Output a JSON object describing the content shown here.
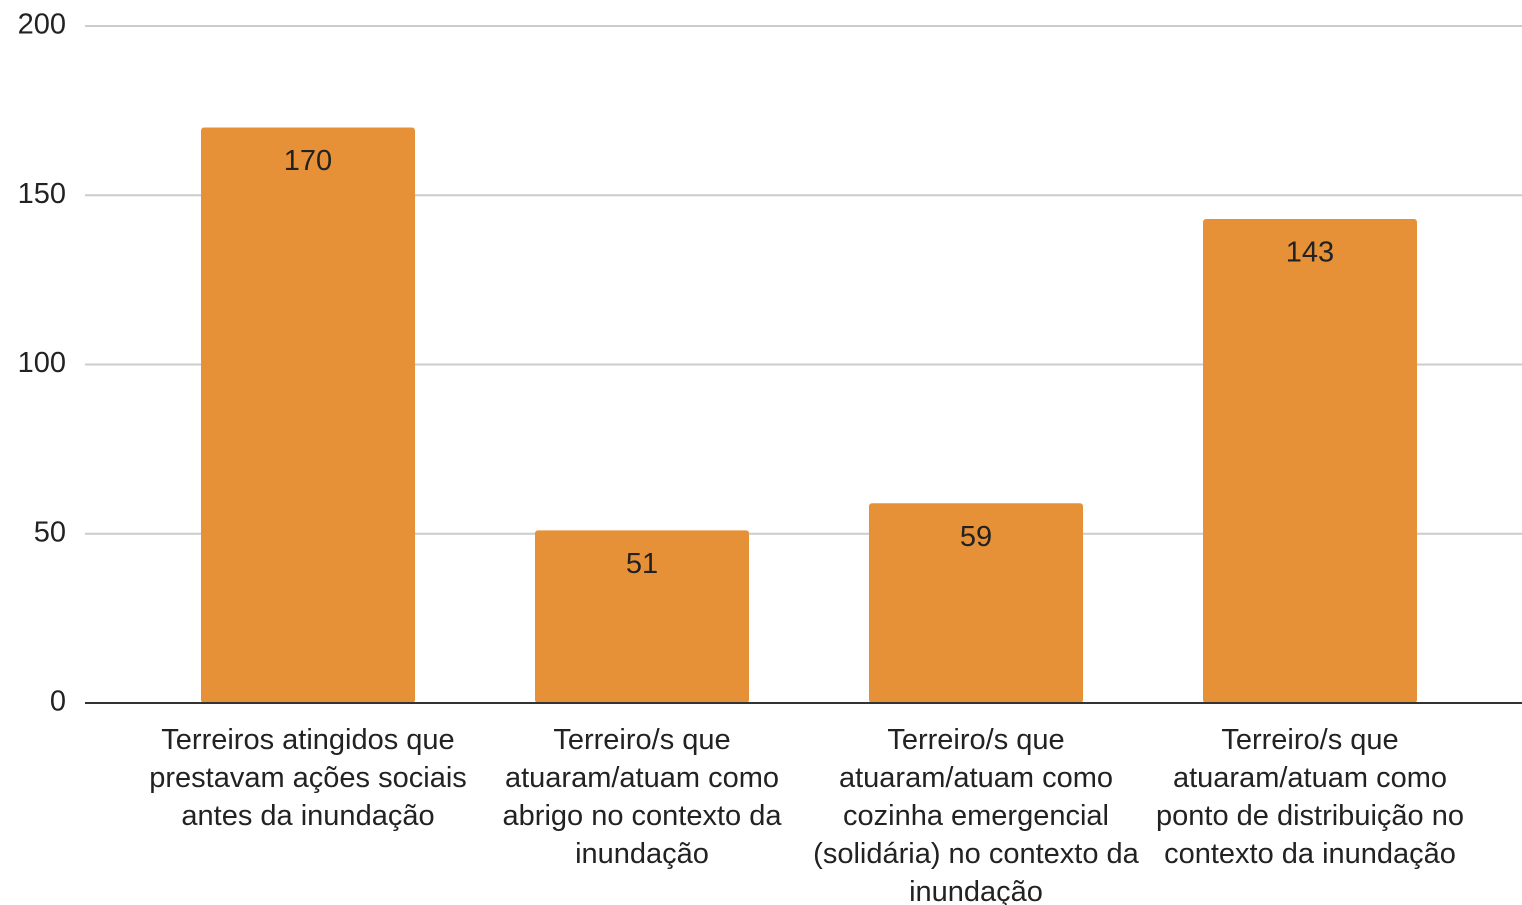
{
  "chart_data": {
    "type": "bar",
    "categories": [
      "Terreiros atingidos que prestavam ações sociais antes da inundação",
      "Terreiro/s que atuaram/atuam como abrigo no contexto da inundação",
      "Terreiro/s que atuaram/atuam como cozinha emergencial (solidária) no contexto da inundação",
      "Terreiro/s que atuaram/atuam como ponto de distribuição no contexto da inundação"
    ],
    "values": [
      170,
      51,
      59,
      143
    ],
    "color": "#e69138",
    "ylim": [
      0,
      200
    ],
    "yticks": [
      0,
      50,
      100,
      150,
      200
    ],
    "grid": true
  }
}
